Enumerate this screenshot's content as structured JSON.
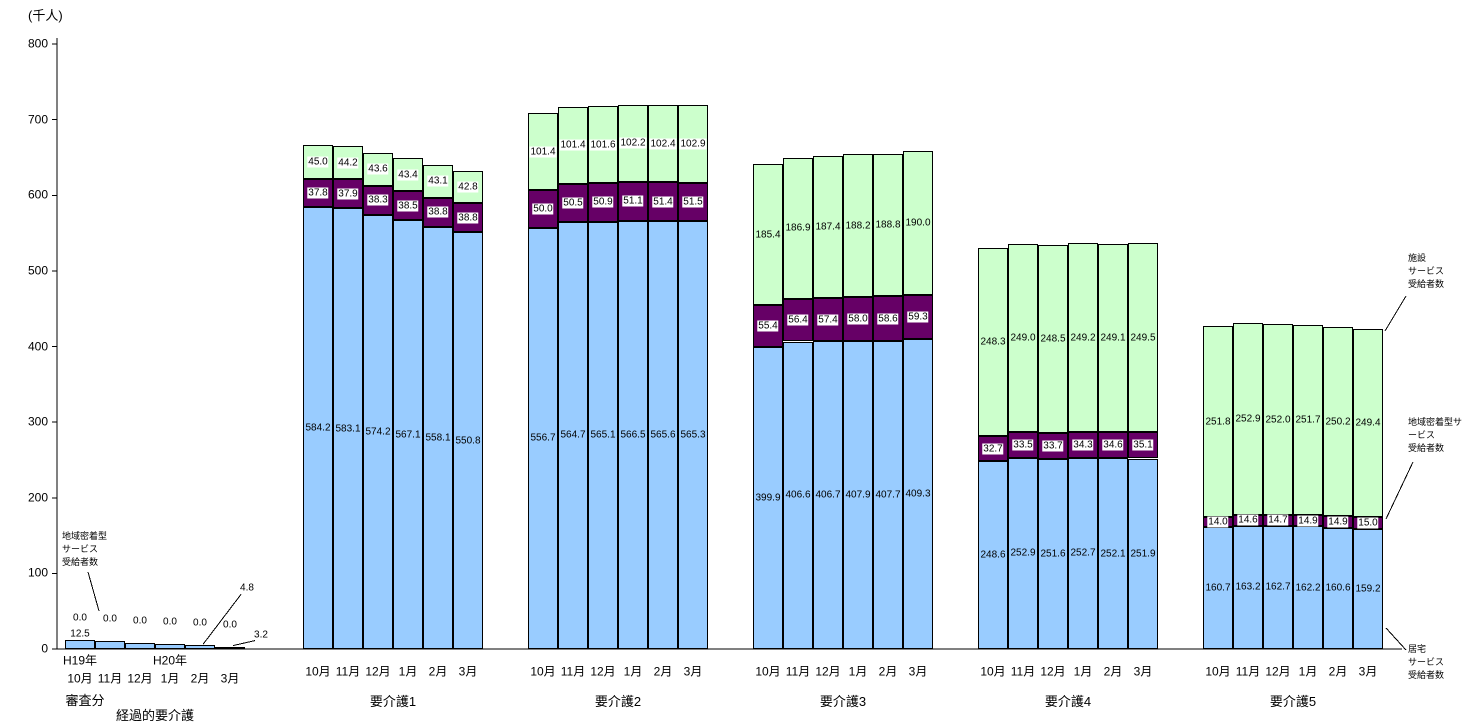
{
  "y_axis": {
    "unit": "(千人)",
    "ticks": [
      0,
      100,
      200,
      300,
      400,
      500,
      600,
      700,
      800
    ],
    "max": 800
  },
  "colors": {
    "home": "#99CCFF",
    "community": "#660066",
    "facility": "#CCFFCC",
    "axis": "#000000"
  },
  "series_legend": [
    {
      "key": "home",
      "label": "居宅サービス受給者数"
    },
    {
      "key": "community",
      "label": "地域密着型サービス受給者数"
    },
    {
      "key": "facility",
      "label": "施設サービス受給者数"
    }
  ],
  "annotations": [
    {
      "id": "community-left",
      "lines": [
        "地域密着型",
        "サービス",
        "受給者数"
      ]
    },
    {
      "id": "facility-right",
      "lines": [
        "施設",
        "サービス",
        "受給者数"
      ]
    },
    {
      "id": "community-right",
      "lines": [
        "地域密着型サ",
        "ービス",
        "受給者数"
      ]
    },
    {
      "id": "home-right",
      "lines": [
        "居宅",
        "サービス",
        "受給者数"
      ]
    }
  ],
  "chart_data": {
    "type": "bar",
    "stacked": true,
    "title": "",
    "ylabel": "(千人)",
    "ylim": [
      0,
      800
    ],
    "grid": false,
    "series_names": [
      "居宅サービス受給者数",
      "地域密着型サービス受給者数",
      "施設サービス受給者数"
    ],
    "groups": [
      {
        "label": "経過的要介護",
        "sublabel": "審査分",
        "era_labels": [
          {
            "text": "H19年",
            "bar": 0
          },
          {
            "text": "H20年",
            "bar": 3
          }
        ],
        "months": [
          "10月",
          "11月",
          "12月",
          "1月",
          "2月",
          "3月"
        ],
        "home": [
          12.5,
          10.4,
          8.2,
          6.3,
          4.8,
          3.2
        ],
        "community": [
          0.0,
          0.0,
          0.0,
          0.0,
          0.0,
          0.0
        ],
        "facility": [
          0.0,
          0.0,
          0.0,
          0.0,
          0.0,
          0.0
        ],
        "label_mode": "tiny",
        "above_labels": [
          "0.0",
          "0.0",
          "0.0",
          "0.0",
          "0.0",
          "0.0"
        ],
        "inside_labels": [
          {
            "bar": 0,
            "text": "12.5"
          }
        ],
        "callouts": [
          {
            "bar": 4,
            "text": "4.8"
          },
          {
            "bar": 5,
            "text": "3.2"
          }
        ]
      },
      {
        "label": "要介護1",
        "months": [
          "10月",
          "11月",
          "12月",
          "1月",
          "2月",
          "3月"
        ],
        "home": [
          584.2,
          583.1,
          574.2,
          567.1,
          558.1,
          550.8
        ],
        "community": [
          37.8,
          37.9,
          38.3,
          38.5,
          38.8,
          38.8
        ],
        "facility": [
          45.0,
          44.2,
          43.6,
          43.4,
          43.1,
          42.8
        ],
        "label_mode": "full",
        "facility_boxed": true
      },
      {
        "label": "要介護2",
        "months": [
          "10月",
          "11月",
          "12月",
          "1月",
          "2月",
          "3月"
        ],
        "home": [
          556.7,
          564.7,
          565.1,
          566.5,
          565.6,
          565.3
        ],
        "community": [
          50.0,
          50.5,
          50.9,
          51.1,
          51.4,
          51.5
        ],
        "facility": [
          101.4,
          101.4,
          101.6,
          102.2,
          102.4,
          102.9
        ],
        "label_mode": "full",
        "facility_boxed": true
      },
      {
        "label": "要介護3",
        "months": [
          "10月",
          "11月",
          "12月",
          "1月",
          "2月",
          "3月"
        ],
        "home": [
          399.9,
          406.6,
          406.7,
          407.9,
          407.7,
          409.3
        ],
        "community": [
          55.4,
          56.4,
          57.4,
          58.0,
          58.6,
          59.3
        ],
        "facility": [
          185.4,
          186.9,
          187.4,
          188.2,
          188.8,
          190.0
        ],
        "label_mode": "full",
        "facility_boxed": false
      },
      {
        "label": "要介護4",
        "months": [
          "10月",
          "11月",
          "12月",
          "1月",
          "2月",
          "3月"
        ],
        "home": [
          248.6,
          252.9,
          251.6,
          252.7,
          252.1,
          251.9
        ],
        "community": [
          32.7,
          33.5,
          33.7,
          34.3,
          34.6,
          35.1
        ],
        "facility": [
          248.3,
          249.0,
          248.5,
          249.2,
          249.1,
          249.5
        ],
        "label_mode": "full",
        "facility_boxed": false
      },
      {
        "label": "要介護5",
        "months": [
          "10月",
          "11月",
          "12月",
          "1月",
          "2月",
          "3月"
        ],
        "home": [
          160.7,
          163.2,
          162.7,
          162.2,
          160.6,
          159.2
        ],
        "community": [
          14.0,
          14.6,
          14.7,
          14.9,
          14.9,
          15.0
        ],
        "facility": [
          251.8,
          252.9,
          252.0,
          251.7,
          250.2,
          249.4
        ],
        "label_mode": "full",
        "facility_boxed": false
      }
    ]
  }
}
